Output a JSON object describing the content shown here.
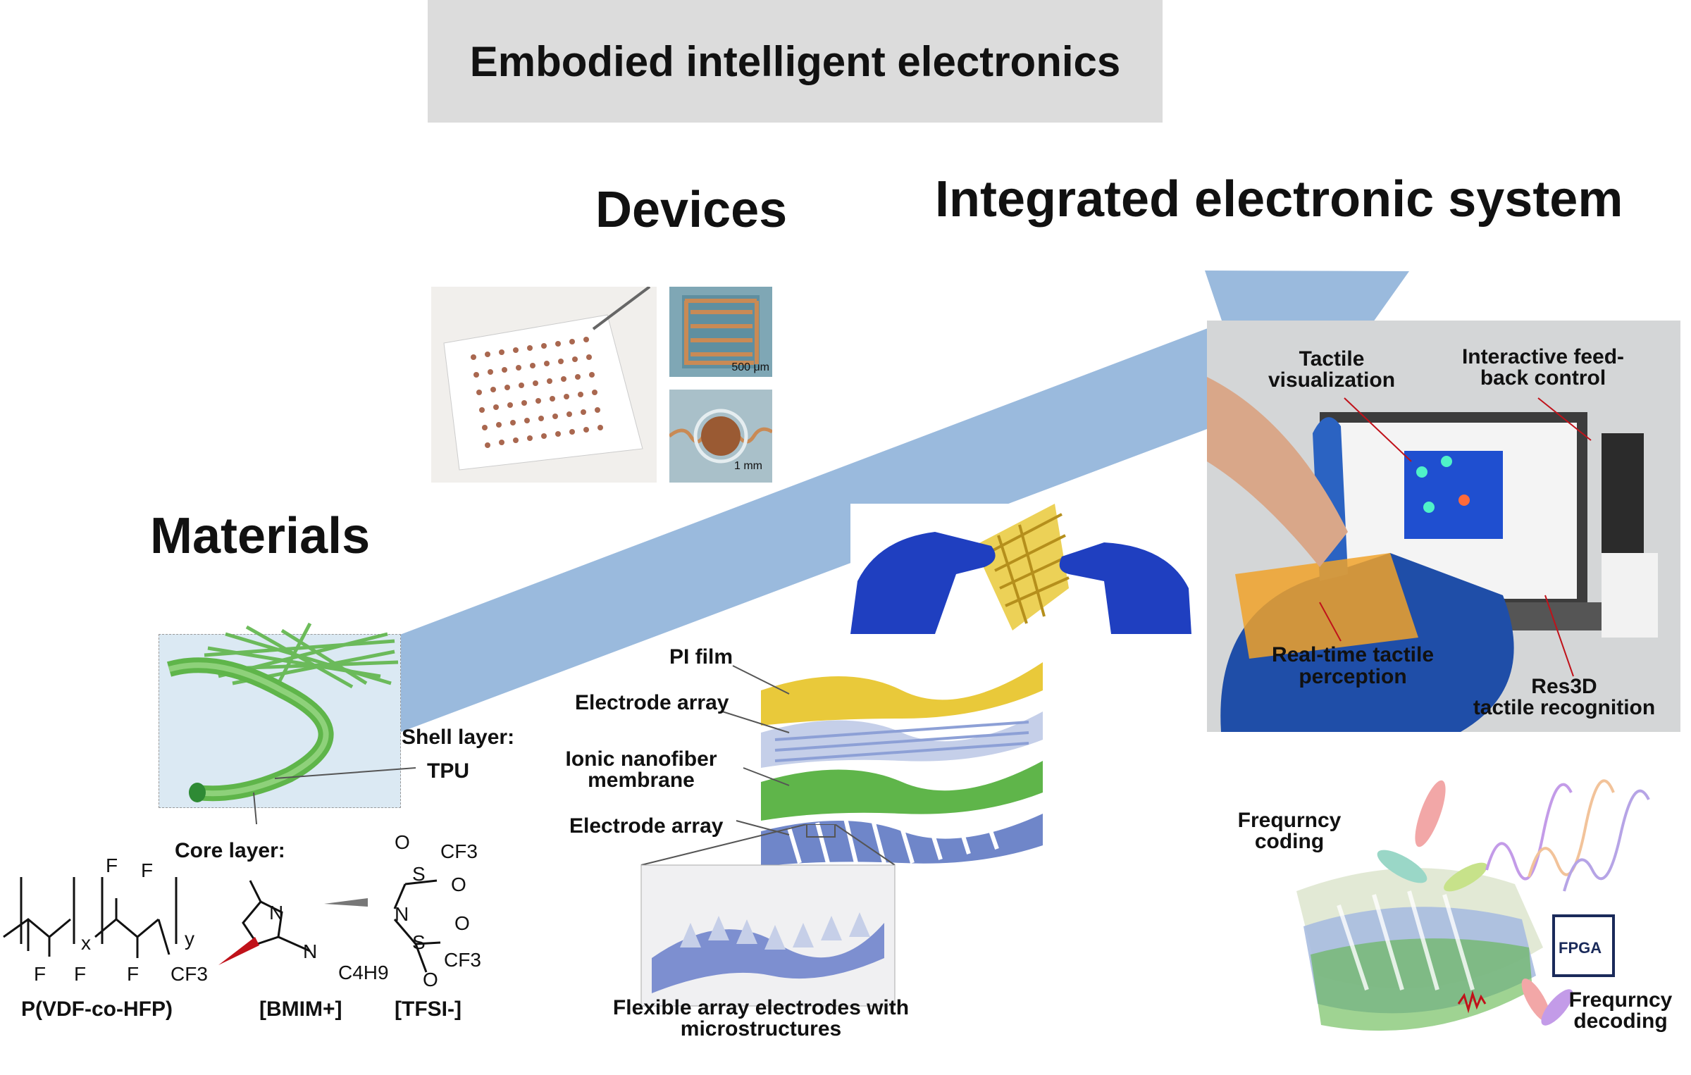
{
  "title": "Embodied intelligent electronics",
  "stages": {
    "materials": "Materials",
    "devices": "Devices",
    "system": "Integrated electronic system"
  },
  "materials": {
    "shell_label": "Shell layer:",
    "shell_material": "TPU",
    "core_label": "Core layer:",
    "polymer": "P(VDF-co-HFP)",
    "cation": "[BMIM+]",
    "anion": "[TFSI-]",
    "chem": {
      "F": "F",
      "CF3": "CF3",
      "x": "x",
      "y": "y",
      "N": "N",
      "S": "S",
      "O": "O",
      "C4H9": "C4H9"
    }
  },
  "devices": {
    "scale_1": "500 μm",
    "scale_2": "1 mm",
    "layers": [
      "PI film",
      "Electrode array",
      "Ionic nanofiber membrane",
      "Electrode array"
    ],
    "electrode_caption_line1": "Flexible array electrodes with",
    "electrode_caption_line2": "microstructures"
  },
  "system": {
    "tactile_vis_line1": "Tactile",
    "tactile_vis_line2": "visualization",
    "feedback_line1": "Interactive feed-",
    "feedback_line2": "back control",
    "realtime_line1": "Real-time tactile",
    "realtime_line2": "perception",
    "res3d_line1": "Res3D",
    "res3d_line2": "tactile recognition",
    "coding_line1": "Frequrncy",
    "coding_line2": "coding",
    "decoding_line1": "Frequrncy",
    "decoding_line2": "decoding",
    "chip": "FPGA"
  },
  "colors": {
    "arrow": "#8fb3d9",
    "title_bg": "#dcdcdc",
    "fiber_green": "#5fb54a",
    "pi_yellow": "#e9c93a",
    "electrode_blue": "#6f86c9",
    "glove_blue": "#1f3fc0"
  }
}
